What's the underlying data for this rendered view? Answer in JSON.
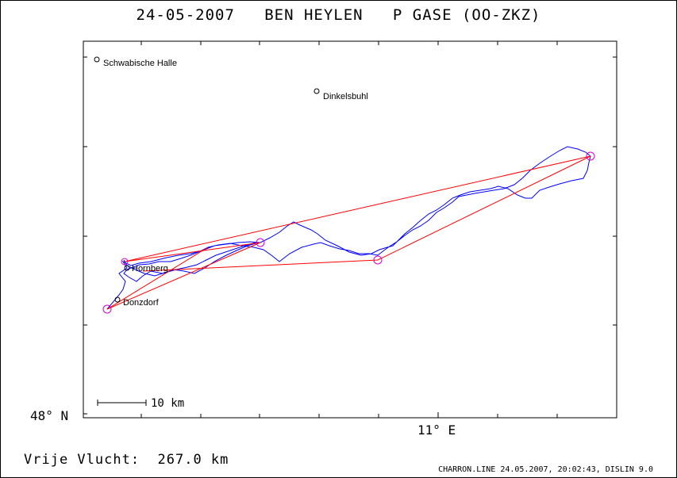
{
  "header": {
    "title": "24-05-2007   BEN HEYLEN   P GASE (OO-ZKZ)"
  },
  "map": {
    "axis": {
      "y_label": "48° N",
      "x_label": "11° E"
    },
    "scale_bar": {
      "label": "10 km"
    },
    "places": [
      {
        "name": "Schwabische Halle"
      },
      {
        "name": "Dinkelsbuhl"
      },
      {
        "name": "Hornberg"
      },
      {
        "name": "Donzdorf"
      }
    ],
    "colors": {
      "track": "#0000ff",
      "legs": "#ff0000",
      "turnpoints": "#d000d0"
    }
  },
  "footer": {
    "distance": "Vrije Vlucht:  267.0 km",
    "credit": "CHARRON.LINE 24.05.2007, 20:02:43, DISLIN 9.0"
  }
}
